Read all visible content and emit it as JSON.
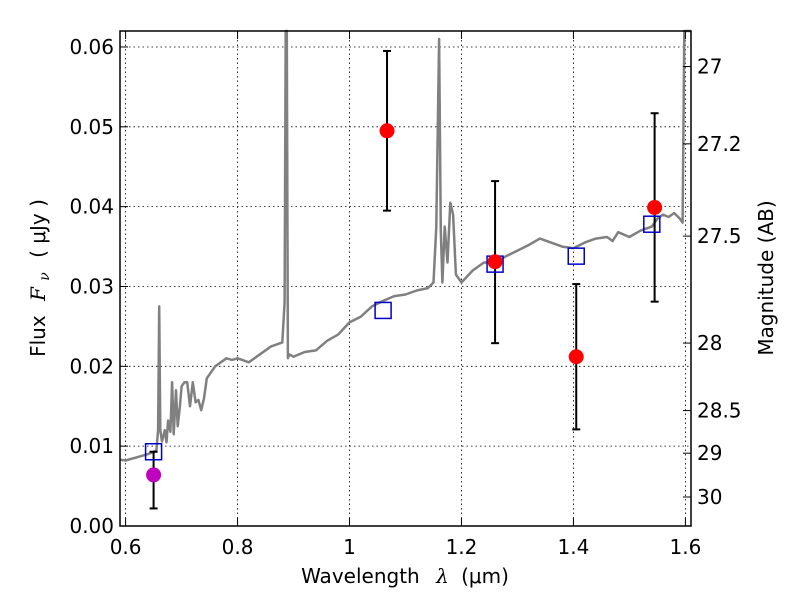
{
  "chart_data": {
    "type": "line",
    "xlabel": "Wavelength",
    "xlabel_symbol": "λ",
    "xlabel_unit": "(μm)",
    "ylabel": "Flux",
    "ylabel_symbol": "F",
    "ylabel_subscript": "ν",
    "ylabel_unit": "( μJy )",
    "y2label": "Magnitude (AB)",
    "xlim": [
      0.59,
      1.61
    ],
    "ylim": [
      0.0,
      0.062
    ],
    "grid": true,
    "x_ticks": [
      0.6,
      0.8,
      1.0,
      1.2,
      1.4,
      1.6
    ],
    "x_tick_labels": [
      "0.6",
      "0.8",
      "1",
      "1.2",
      "1.4",
      "1.6"
    ],
    "y_ticks": [
      0.0,
      0.01,
      0.02,
      0.03,
      0.04,
      0.05,
      0.06
    ],
    "y_tick_labels": [
      "0.00",
      "0.01",
      "0.02",
      "0.03",
      "0.04",
      "0.05",
      "0.06"
    ],
    "y2_ticks": [
      27.0,
      27.2,
      27.5,
      28.0,
      28.5,
      29.0,
      30.0
    ],
    "y2_tick_labels": [
      "27",
      "27.2",
      "27.5",
      "28",
      "28.5",
      "29",
      "30"
    ],
    "colors": {
      "spectrum": "#808080",
      "observed": "#ff0000",
      "observed_alt": "#bf00bf",
      "model": "#0000cc",
      "errorbar": "#000000"
    },
    "spectrum": {
      "x": [
        0.59,
        0.6,
        0.62,
        0.64,
        0.65,
        0.655,
        0.658,
        0.66,
        0.662,
        0.665,
        0.67,
        0.673,
        0.676,
        0.68,
        0.683,
        0.686,
        0.69,
        0.693,
        0.697,
        0.7,
        0.705,
        0.71,
        0.715,
        0.72,
        0.725,
        0.73,
        0.735,
        0.74,
        0.745,
        0.75,
        0.76,
        0.77,
        0.78,
        0.79,
        0.8,
        0.82,
        0.84,
        0.86,
        0.88,
        0.884,
        0.886,
        0.888,
        0.89,
        0.892,
        0.9,
        0.92,
        0.94,
        0.96,
        0.98,
        1.0,
        1.02,
        1.04,
        1.06,
        1.08,
        1.1,
        1.12,
        1.14,
        1.15,
        1.155,
        1.16,
        1.163,
        1.166,
        1.17,
        1.175,
        1.18,
        1.185,
        1.19,
        1.2,
        1.22,
        1.24,
        1.26,
        1.28,
        1.3,
        1.32,
        1.34,
        1.36,
        1.38,
        1.4,
        1.42,
        1.44,
        1.46,
        1.47,
        1.48,
        1.5,
        1.52,
        1.54,
        1.55,
        1.56,
        1.57,
        1.58,
        1.59,
        1.595,
        1.598,
        1.6,
        1.61
      ],
      "y": [
        0.0083,
        0.0082,
        0.0086,
        0.009,
        0.0093,
        0.0095,
        0.012,
        0.0275,
        0.012,
        0.0106,
        0.012,
        0.0105,
        0.0132,
        0.0118,
        0.018,
        0.0115,
        0.017,
        0.0125,
        0.015,
        0.0175,
        0.018,
        0.018,
        0.015,
        0.018,
        0.0155,
        0.0158,
        0.0145,
        0.016,
        0.0185,
        0.019,
        0.02,
        0.0205,
        0.021,
        0.0208,
        0.021,
        0.0205,
        0.0215,
        0.0225,
        0.023,
        0.028,
        0.062,
        0.062,
        0.021,
        0.0215,
        0.0212,
        0.0218,
        0.022,
        0.0232,
        0.024,
        0.0255,
        0.0262,
        0.0275,
        0.0282,
        0.0288,
        0.029,
        0.0295,
        0.0298,
        0.0305,
        0.0375,
        0.061,
        0.037,
        0.0305,
        0.0375,
        0.033,
        0.0405,
        0.039,
        0.0315,
        0.0305,
        0.032,
        0.033,
        0.033,
        0.0338,
        0.0345,
        0.0352,
        0.036,
        0.0355,
        0.035,
        0.0348,
        0.0355,
        0.036,
        0.0362,
        0.0357,
        0.0368,
        0.0362,
        0.037,
        0.0375,
        0.0385,
        0.039,
        0.0387,
        0.0392,
        0.0385,
        0.038,
        0.062,
        0.062,
        0.062
      ]
    },
    "observed": {
      "x": [
        0.65,
        1.067,
        1.26,
        1.405,
        1.545
      ],
      "y": [
        0.0064,
        0.0495,
        0.0331,
        0.0212,
        0.0399
      ],
      "yerr_low": [
        0.0042,
        0.01,
        0.0102,
        0.0091,
        0.0118
      ],
      "yerr_high": [
        0.0029,
        0.01,
        0.0101,
        0.0091,
        0.0118
      ]
    },
    "model": {
      "x": [
        0.65,
        1.06,
        1.26,
        1.405,
        1.54
      ],
      "y": [
        0.0093,
        0.027,
        0.0328,
        0.0338,
        0.0378
      ]
    }
  }
}
